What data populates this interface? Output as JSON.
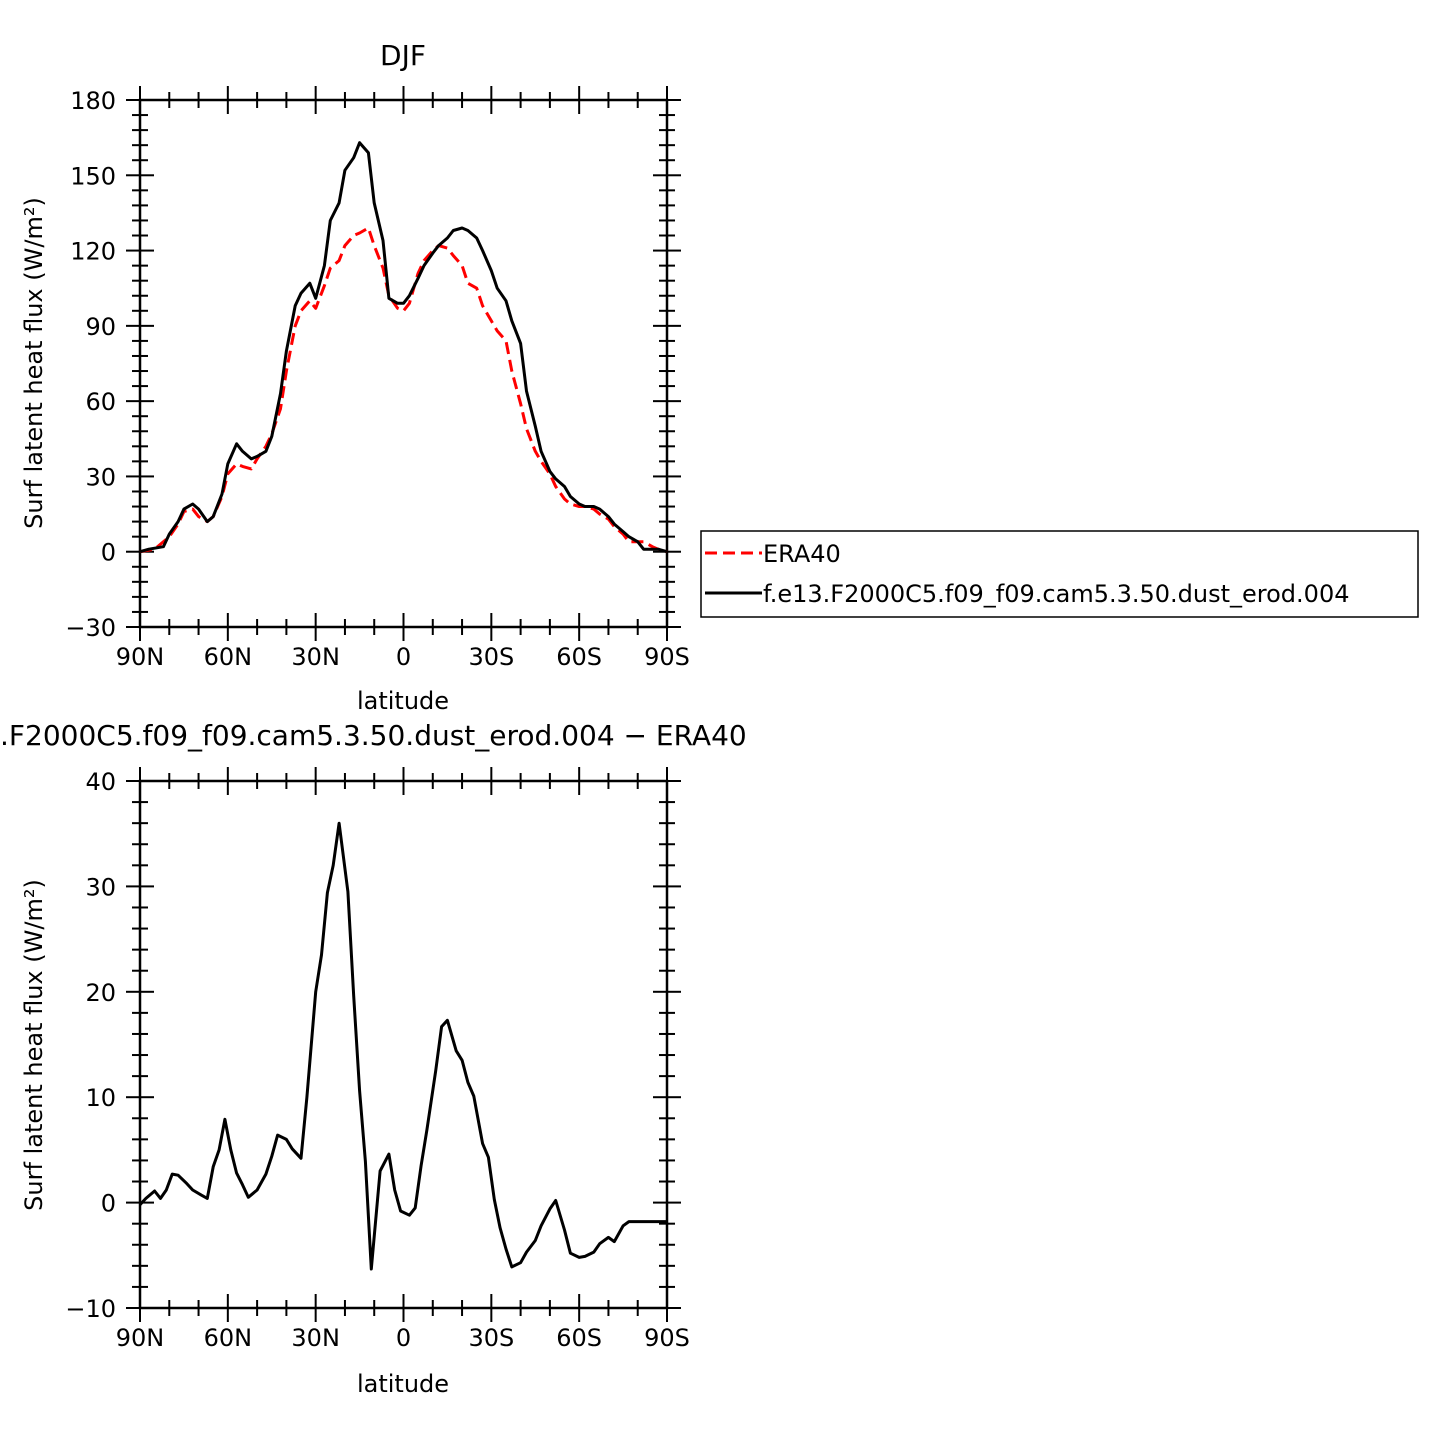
{
  "chart_data": [
    {
      "type": "line",
      "title": "DJF",
      "xlabel": "latitude",
      "ylabel": "Surf latent heat flux (W/m²)",
      "xlim": [
        90,
        -90
      ],
      "ylim": [
        -30,
        180
      ],
      "xticks": [
        90,
        60,
        30,
        0,
        -30,
        -60,
        -90
      ],
      "xtick_labels": [
        "90N",
        "60N",
        "30N",
        "0",
        "30S",
        "60S",
        "90S"
      ],
      "yticks": [
        -30,
        0,
        30,
        60,
        90,
        120,
        150,
        180
      ],
      "ytick_labels": [
        "−30",
        "0",
        "30",
        "60",
        "90",
        "120",
        "150",
        "180"
      ],
      "grid": false,
      "legend": "right",
      "series": [
        {
          "name": "ERA40",
          "color": "#ff0000",
          "style": "dashed",
          "x": [
            90,
            85,
            80,
            77,
            75,
            72,
            70,
            67,
            65,
            62,
            60,
            57,
            55,
            52,
            50,
            47,
            45,
            42,
            40,
            37,
            35,
            32,
            30,
            27,
            25,
            22,
            20,
            17,
            15,
            12,
            10,
            7,
            5,
            2,
            0,
            -2,
            -5,
            -7,
            -10,
            -12,
            -15,
            -17,
            -20,
            -22,
            -25,
            -27,
            -30,
            -32,
            -35,
            -37,
            -40,
            -42,
            -45,
            -47,
            -50,
            -52,
            -55,
            -57,
            -60,
            -62,
            -65,
            -67,
            -70,
            -72,
            -75,
            -77,
            -80,
            -82,
            -85,
            -87,
            -90
          ],
          "values": [
            0,
            1,
            6,
            11,
            16,
            17,
            14,
            12,
            14,
            22,
            31,
            35,
            34,
            33,
            37,
            42,
            47,
            57,
            72,
            90,
            96,
            100,
            97,
            106,
            113,
            116,
            122,
            126,
            127,
            129,
            122,
            113,
            102,
            97,
            96,
            99,
            111,
            116,
            120,
            122,
            121,
            118,
            114,
            107,
            105,
            98,
            92,
            88,
            84,
            72,
            59,
            49,
            40,
            36,
            31,
            26,
            21,
            19,
            18,
            18,
            17,
            15,
            13,
            10,
            7,
            4,
            4,
            4,
            2,
            1,
            0
          ]
        },
        {
          "name": "f.e13.F2000C5.f09_f09.cam5.3.50.dust_erod.004",
          "color": "#000000",
          "style": "solid",
          "x": [
            90,
            87,
            82,
            80,
            77,
            75,
            72,
            70,
            67,
            65,
            62,
            60,
            57,
            55,
            52,
            50,
            47,
            45,
            42,
            40,
            37,
            35,
            32,
            30,
            27,
            25,
            22,
            20,
            17,
            15,
            12,
            10,
            7,
            5,
            2,
            0,
            -2,
            -5,
            -7,
            -10,
            -12,
            -15,
            -17,
            -20,
            -22,
            -25,
            -27,
            -30,
            -32,
            -35,
            -37,
            -40,
            -42,
            -45,
            -47,
            -50,
            -52,
            -55,
            -57,
            -60,
            -62,
            -65,
            -67,
            -70,
            -72,
            -75,
            -77,
            -80,
            -82,
            -85,
            -87,
            -90
          ],
          "values": [
            0,
            1,
            2,
            7,
            12,
            17,
            19,
            17,
            12,
            14,
            23,
            35,
            43,
            40,
            37,
            38,
            40,
            46,
            63,
            80,
            98,
            103,
            107,
            101,
            114,
            132,
            139,
            152,
            157,
            163,
            159,
            139,
            124,
            101,
            99,
            99,
            102,
            109,
            114,
            119,
            122,
            125,
            128,
            129,
            128,
            125,
            120,
            112,
            105,
            100,
            92,
            83,
            64,
            50,
            40,
            32,
            29,
            26,
            22,
            19,
            18,
            18,
            17,
            14,
            11,
            8,
            6,
            4,
            1,
            1,
            1,
            0
          ]
        }
      ]
    },
    {
      "type": "line",
      "title": ".F2000C5.f09_f09.cam5.3.50.dust_erod.004 − ERA40",
      "xlabel": "latitude",
      "ylabel": "Surf latent heat flux (W/m²)",
      "xlim": [
        90,
        -90
      ],
      "ylim": [
        -10,
        40
      ],
      "xticks": [
        90,
        60,
        30,
        0,
        -30,
        -60,
        -90
      ],
      "xtick_labels": [
        "90N",
        "60N",
        "30N",
        "0",
        "30S",
        "60S",
        "90S"
      ],
      "yticks": [
        -10,
        0,
        10,
        20,
        30,
        40
      ],
      "ytick_labels": [
        "−10",
        "0",
        "10",
        "20",
        "30",
        "40"
      ],
      "grid": false,
      "series": [
        {
          "color": "#000000",
          "style": "solid",
          "x": [
            90,
            88,
            85,
            83,
            81,
            79,
            77,
            74,
            72,
            69,
            67,
            65,
            63,
            61,
            59,
            57,
            55,
            53,
            50,
            47,
            45,
            43,
            40,
            38,
            35,
            33,
            30,
            28,
            26,
            24,
            22,
            19,
            17,
            15,
            13,
            11,
            8,
            5,
            3,
            1,
            -2,
            -4,
            -6,
            -8,
            -11,
            -13,
            -15,
            -18,
            -20,
            -22,
            -24,
            -27,
            -29,
            -31,
            -33,
            -35,
            -37,
            -40,
            -42,
            -45,
            -47,
            -50,
            -52,
            -55,
            -57,
            -60,
            -62,
            -65,
            -67,
            -70,
            -72,
            -75,
            -77,
            -80,
            -82,
            -84,
            -86,
            -88,
            -90
          ],
          "values": [
            -0.2,
            0.4,
            1.1,
            0.4,
            1.2,
            2.7,
            2.6,
            1.8,
            1.2,
            0.7,
            0.4,
            3.4,
            5.0,
            7.9,
            5.0,
            2.8,
            1.7,
            0.5,
            1.2,
            2.7,
            4.4,
            6.4,
            6.0,
            5.1,
            4.2,
            10.0,
            20.0,
            23.5,
            29.4,
            32.0,
            36.0,
            29.5,
            19.6,
            10.6,
            3.9,
            -6.3,
            3.0,
            4.6,
            1.2,
            -0.8,
            -1.2,
            -0.5,
            3.5,
            6.9,
            12.5,
            16.7,
            17.3,
            14.4,
            13.5,
            11.4,
            10.1,
            5.6,
            4.3,
            0.3,
            -2.4,
            -4.4,
            -6.1,
            -5.7,
            -4.7,
            -3.6,
            -2.2,
            -0.6,
            0.2,
            -2.6,
            -4.8,
            -5.2,
            -5.1,
            -4.7,
            -3.9,
            -3.3,
            -3.7,
            -2.2,
            -1.8,
            -1.8,
            -1.8,
            -1.8,
            -1.8,
            -1.8,
            -1.8
          ]
        }
      ]
    }
  ]
}
